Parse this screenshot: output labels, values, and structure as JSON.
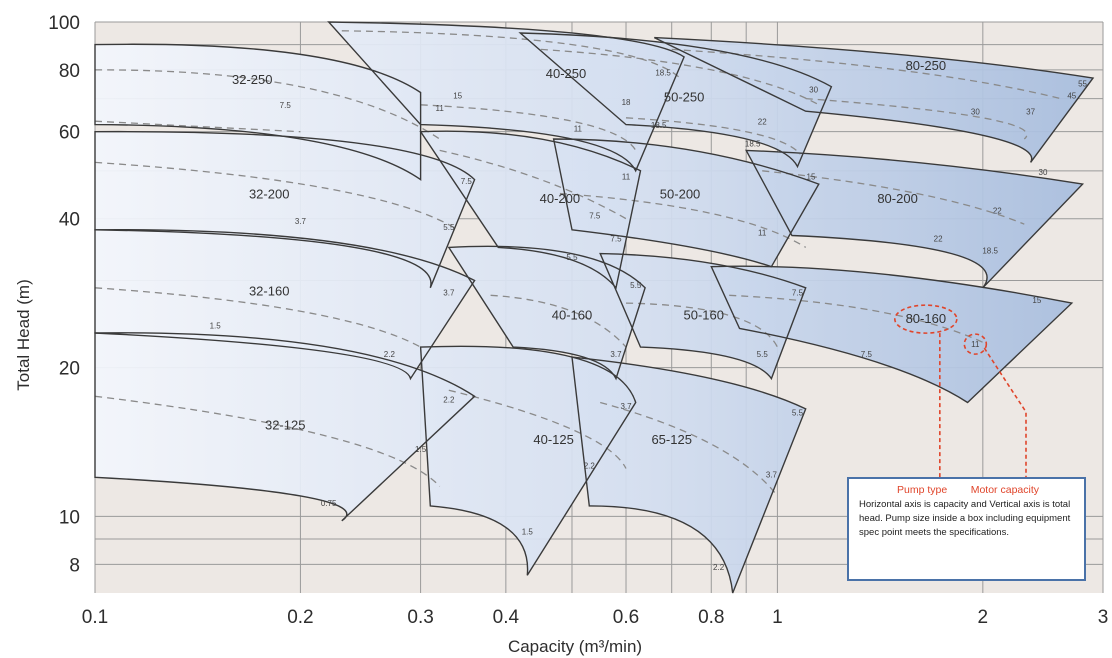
{
  "chart_data": {
    "type": "area",
    "x_scale": "log",
    "y_scale": "log",
    "xlabel": "Capacity (m³/min)",
    "ylabel": "Total Head (m)",
    "xlim": [
      0.1,
      3
    ],
    "ylim": [
      7,
      100
    ],
    "x_ticks": [
      {
        "v": 0.1,
        "label": "0.1"
      },
      {
        "v": 0.2,
        "label": "0.2"
      },
      {
        "v": 0.3,
        "label": "0.3"
      },
      {
        "v": 0.4,
        "label": "0.4"
      },
      {
        "v": 0.6,
        "label": "0.6"
      },
      {
        "v": 0.8,
        "label": "0.8"
      },
      {
        "v": 1,
        "label": "1"
      },
      {
        "v": 2,
        "label": "2"
      },
      {
        "v": 3,
        "label": "3"
      }
    ],
    "y_ticks": [
      {
        "v": 8,
        "label": "8"
      },
      {
        "v": 10,
        "label": "10"
      },
      {
        "v": 20,
        "label": "20"
      },
      {
        "v": 40,
        "label": "40"
      },
      {
        "v": 60,
        "label": "60"
      },
      {
        "v": 80,
        "label": "80"
      },
      {
        "v": 100,
        "label": "100"
      }
    ],
    "grid_x": [
      0.1,
      0.2,
      0.3,
      0.4,
      0.5,
      0.6,
      0.7,
      0.8,
      0.9,
      1,
      2,
      3
    ],
    "grid_y": [
      8,
      9,
      10,
      20,
      30,
      40,
      50,
      60,
      70,
      80,
      90,
      100
    ],
    "grid": true,
    "colors": {
      "region_light": "#f3f6fc",
      "region_dark": "#a6bcdd",
      "dashed": "#8a8a8a",
      "outline": "#3a3a3a",
      "highlight": "#e0452b",
      "background": "#ede8e4"
    },
    "regions": [
      {
        "label": "32-250",
        "top": [
          [
            0.1,
            90
          ],
          [
            0.2,
            86
          ],
          [
            0.3,
            72
          ]
        ],
        "bottom": [
          [
            0.1,
            62
          ],
          [
            0.2,
            58
          ],
          [
            0.3,
            48
          ]
        ],
        "label_at": [
          0.17,
          75
        ],
        "power": [
          {
            "label": "7.5",
            "x": 0.19,
            "y": 67
          },
          {
            "label": "11",
            "x": 0.32,
            "y": 66
          },
          {
            "label": "15",
            "x": 0.34,
            "y": 70
          }
        ],
        "dashed": [
          [
            [
              0.1,
              80
            ],
            [
              0.2,
              74
            ],
            [
              0.32,
              58
            ]
          ],
          [
            [
              0.1,
              63
            ],
            [
              0.2,
              60
            ]
          ]
        ]
      },
      {
        "label": "40-250",
        "top": [
          [
            0.22,
            100
          ],
          [
            0.5,
            95
          ],
          [
            0.73,
            85
          ]
        ],
        "bottom": [
          [
            0.3,
            62
          ],
          [
            0.5,
            58
          ],
          [
            0.62,
            50
          ]
        ],
        "label_at": [
          0.49,
          77
        ],
        "power": [
          {
            "label": "11",
            "x": 0.51,
            "y": 60
          },
          {
            "label": "18",
            "x": 0.6,
            "y": 68
          },
          {
            "label": "18.5",
            "x": 0.68,
            "y": 78
          }
        ],
        "dashed": [
          [
            [
              0.23,
              96
            ],
            [
              0.5,
              90
            ],
            [
              0.72,
              77
            ]
          ],
          [
            [
              0.3,
              68
            ],
            [
              0.5,
              63
            ],
            [
              0.62,
              55
            ]
          ]
        ]
      },
      {
        "label": "50-250",
        "top": [
          [
            0.42,
            95
          ],
          [
            0.8,
            88
          ],
          [
            1.2,
            74
          ]
        ],
        "bottom": [
          [
            0.6,
            62
          ],
          [
            0.9,
            58
          ],
          [
            1.07,
            51
          ]
        ],
        "label_at": [
          0.73,
          69
        ],
        "power": [
          {
            "label": "18.5",
            "x": 0.67,
            "y": 61
          },
          {
            "label": "22",
            "x": 0.95,
            "y": 62
          },
          {
            "label": "30",
            "x": 1.13,
            "y": 72
          },
          {
            "label": "18.5",
            "x": 0.92,
            "y": 56
          }
        ],
        "dashed": [
          [
            [
              0.45,
              88
            ],
            [
              0.8,
              80
            ],
            [
              1.15,
              68
            ]
          ],
          [
            [
              0.6,
              64
            ],
            [
              0.9,
              60
            ],
            [
              1.08,
              54
            ]
          ]
        ]
      },
      {
        "label": "80-250",
        "top": [
          [
            0.66,
            93
          ],
          [
            1.5,
            86
          ],
          [
            2.9,
            77
          ]
        ],
        "bottom": [
          [
            1.1,
            66
          ],
          [
            2,
            59
          ],
          [
            2.35,
            52
          ]
        ],
        "label_at": [
          1.65,
          80
        ],
        "power": [
          {
            "label": "30",
            "x": 1.95,
            "y": 65
          },
          {
            "label": "37",
            "x": 2.35,
            "y": 65
          },
          {
            "label": "45",
            "x": 2.7,
            "y": 70
          },
          {
            "label": "55",
            "x": 2.8,
            "y": 74
          }
        ],
        "dashed": [
          [
            [
              0.7,
              88
            ],
            [
              1.5,
              80
            ],
            [
              2.6,
              70
            ]
          ],
          [
            [
              1.1,
              70
            ],
            [
              2,
              64
            ],
            [
              2.3,
              58
            ]
          ]
        ]
      },
      {
        "label": "32-200",
        "top": [
          [
            0.1,
            60
          ],
          [
            0.24,
            57
          ],
          [
            0.36,
            48
          ]
        ],
        "bottom": [
          [
            0.1,
            38
          ],
          [
            0.24,
            35
          ],
          [
            0.31,
            29
          ]
        ],
        "label_at": [
          0.18,
          44
        ],
        "power": [
          {
            "label": "3.7",
            "x": 0.2,
            "y": 39
          },
          {
            "label": "5.5",
            "x": 0.33,
            "y": 38
          },
          {
            "label": "7.5",
            "x": 0.35,
            "y": 47
          }
        ],
        "dashed": [
          [
            [
              0.1,
              52
            ],
            [
              0.22,
              46
            ],
            [
              0.34,
              38
            ]
          ]
        ]
      },
      {
        "label": "40-200",
        "top": [
          [
            0.3,
            60
          ],
          [
            0.45,
            58
          ],
          [
            0.63,
            50
          ]
        ],
        "bottom": [
          [
            0.39,
            35
          ],
          [
            0.5,
            33
          ],
          [
            0.58,
            29
          ]
        ],
        "label_at": [
          0.48,
          43
        ],
        "power": [
          {
            "label": "7.5",
            "x": 0.54,
            "y": 40
          },
          {
            "label": "11",
            "x": 0.6,
            "y": 48
          },
          {
            "label": "5.5",
            "x": 0.5,
            "y": 33
          }
        ],
        "dashed": [
          [
            [
              0.32,
              55
            ],
            [
              0.45,
              48
            ],
            [
              0.6,
              40
            ]
          ]
        ]
      },
      {
        "label": "50-200",
        "top": [
          [
            0.47,
            58
          ],
          [
            0.75,
            55
          ],
          [
            1.15,
            47
          ]
        ],
        "bottom": [
          [
            0.5,
            38
          ],
          [
            0.75,
            35
          ],
          [
            0.98,
            32
          ]
        ],
        "label_at": [
          0.72,
          44
        ],
        "power": [
          {
            "label": "7.5",
            "x": 0.58,
            "y": 36
          },
          {
            "label": "11",
            "x": 0.95,
            "y": 37
          },
          {
            "label": "15",
            "x": 1.12,
            "y": 48
          }
        ],
        "dashed": [
          [
            [
              0.48,
              45
            ],
            [
              0.8,
              41
            ],
            [
              1.1,
              35
            ]
          ]
        ]
      },
      {
        "label": "80-200",
        "top": [
          [
            0.9,
            55
          ],
          [
            1.6,
            52
          ],
          [
            2.8,
            47
          ]
        ],
        "bottom": [
          [
            1.05,
            37
          ],
          [
            1.8,
            34
          ],
          [
            2.0,
            29
          ]
        ],
        "label_at": [
          1.5,
          43
        ],
        "power": [
          {
            "label": "22",
            "x": 1.72,
            "y": 36
          },
          {
            "label": "18.5",
            "x": 2.05,
            "y": 34
          },
          {
            "label": "22",
            "x": 2.1,
            "y": 41
          },
          {
            "label": "30",
            "x": 2.45,
            "y": 49
          }
        ],
        "dashed": [
          [
            [
              0.95,
              50
            ],
            [
              1.6,
              45
            ],
            [
              2.3,
              39
            ]
          ]
        ]
      },
      {
        "label": "32-160",
        "top": [
          [
            0.1,
            38
          ],
          [
            0.22,
            36
          ],
          [
            0.36,
            30
          ]
        ],
        "bottom": [
          [
            0.1,
            23.5
          ],
          [
            0.22,
            21.5
          ],
          [
            0.29,
            19
          ]
        ],
        "label_at": [
          0.18,
          28
        ],
        "power": [
          {
            "label": "1.5",
            "x": 0.15,
            "y": 24
          },
          {
            "label": "2.2",
            "x": 0.27,
            "y": 21
          },
          {
            "label": "3.7",
            "x": 0.33,
            "y": 28
          }
        ],
        "dashed": [
          [
            [
              0.1,
              29
            ],
            [
              0.2,
              26
            ],
            [
              0.3,
              22
            ]
          ]
        ]
      },
      {
        "label": "40-160",
        "top": [
          [
            0.33,
            35
          ],
          [
            0.5,
            34
          ],
          [
            0.64,
            29
          ]
        ],
        "bottom": [
          [
            0.41,
            22
          ],
          [
            0.52,
            21
          ],
          [
            0.58,
            19
          ]
        ],
        "label_at": [
          0.5,
          25
        ],
        "power": [
          {
            "label": "3.7",
            "x": 0.58,
            "y": 21
          },
          {
            "label": "5.5",
            "x": 0.62,
            "y": 29
          }
        ],
        "dashed": [
          [
            [
              0.38,
              28
            ],
            [
              0.5,
              26
            ],
            [
              0.6,
              22
            ]
          ]
        ]
      },
      {
        "label": "50-160",
        "top": [
          [
            0.55,
            34
          ],
          [
            0.8,
            32.5
          ],
          [
            1.1,
            29
          ]
        ],
        "bottom": [
          [
            0.63,
            22
          ],
          [
            0.85,
            21
          ],
          [
            0.98,
            19
          ]
        ],
        "label_at": [
          0.78,
          25
        ],
        "power": [
          {
            "label": "5.5",
            "x": 0.95,
            "y": 21
          },
          {
            "label": "7.5",
            "x": 1.07,
            "y": 28
          }
        ],
        "dashed": [
          [
            [
              0.6,
              27
            ],
            [
              0.85,
              25.5
            ],
            [
              1.0,
              22
            ]
          ]
        ]
      },
      {
        "label": "80-160",
        "top": [
          [
            0.8,
            32
          ],
          [
            1.4,
            31
          ],
          [
            2.7,
            27
          ]
        ],
        "bottom": [
          [
            0.88,
            24
          ],
          [
            1.4,
            20.5
          ],
          [
            1.9,
            17
          ]
        ],
        "label_at": [
          1.65,
          24.6
        ],
        "power": [
          {
            "label": "7.5",
            "x": 1.35,
            "y": 21
          },
          {
            "label": "11",
            "x": 1.95,
            "y": 22
          },
          {
            "label": "15",
            "x": 2.4,
            "y": 27
          }
        ],
        "dashed": [
          [
            [
              0.85,
              28
            ],
            [
              1.4,
              26
            ],
            [
              2.0,
              22.5
            ]
          ]
        ]
      },
      {
        "label": "32-125",
        "top": [
          [
            0.1,
            23.5
          ],
          [
            0.22,
            22
          ],
          [
            0.36,
            17.5
          ]
        ],
        "bottom": [
          [
            0.1,
            12
          ],
          [
            0.2,
            11
          ],
          [
            0.23,
            9.8
          ]
        ],
        "label_at": [
          0.19,
          15
        ],
        "power": [
          {
            "label": "0.75",
            "x": 0.22,
            "y": 10.5
          },
          {
            "label": "1.5",
            "x": 0.3,
            "y": 13.5
          },
          {
            "label": "2.2",
            "x": 0.33,
            "y": 17
          }
        ],
        "dashed": [
          [
            [
              0.1,
              17.5
            ],
            [
              0.22,
              14.5
            ],
            [
              0.32,
              11.5
            ]
          ]
        ]
      },
      {
        "label": "40-125",
        "top": [
          [
            0.3,
            22
          ],
          [
            0.5,
            21
          ],
          [
            0.62,
            17
          ]
        ],
        "bottom": [
          [
            0.31,
            10.5
          ],
          [
            0.4,
            9.5
          ],
          [
            0.43,
            7.6
          ]
        ],
        "label_at": [
          0.47,
          14
        ],
        "power": [
          {
            "label": "1.5",
            "x": 0.43,
            "y": 9.2
          },
          {
            "label": "2.2",
            "x": 0.53,
            "y": 12.5
          },
          {
            "label": "3.7",
            "x": 0.6,
            "y": 16.5
          }
        ],
        "dashed": [
          [
            [
              0.33,
              18
            ],
            [
              0.5,
              15
            ],
            [
              0.6,
              12.5
            ]
          ]
        ]
      },
      {
        "label": "65-125",
        "top": [
          [
            0.5,
            21
          ],
          [
            0.8,
            19
          ],
          [
            1.1,
            16.5
          ]
        ],
        "bottom": [
          [
            0.53,
            10.5
          ],
          [
            0.75,
            9.5
          ],
          [
            0.86,
            7
          ]
        ],
        "label_at": [
          0.7,
          14
        ],
        "power": [
          {
            "label": "2.2",
            "x": 0.82,
            "y": 7.8
          },
          {
            "label": "3.7",
            "x": 0.98,
            "y": 12
          },
          {
            "label": "5.5",
            "x": 1.07,
            "y": 16
          }
        ],
        "dashed": [
          [
            [
              0.55,
              17
            ],
            [
              0.8,
              14
            ],
            [
              1.0,
              11
            ]
          ]
        ]
      }
    ],
    "highlight": {
      "label": "80-160",
      "power": "11",
      "pump_callout": "Pump type",
      "motor_callout": "Motor capacity"
    },
    "note": "Horizontal axis is capacity and Vertical axis is total head. Pump size inside a box including equipment spec point meets the specifications."
  }
}
